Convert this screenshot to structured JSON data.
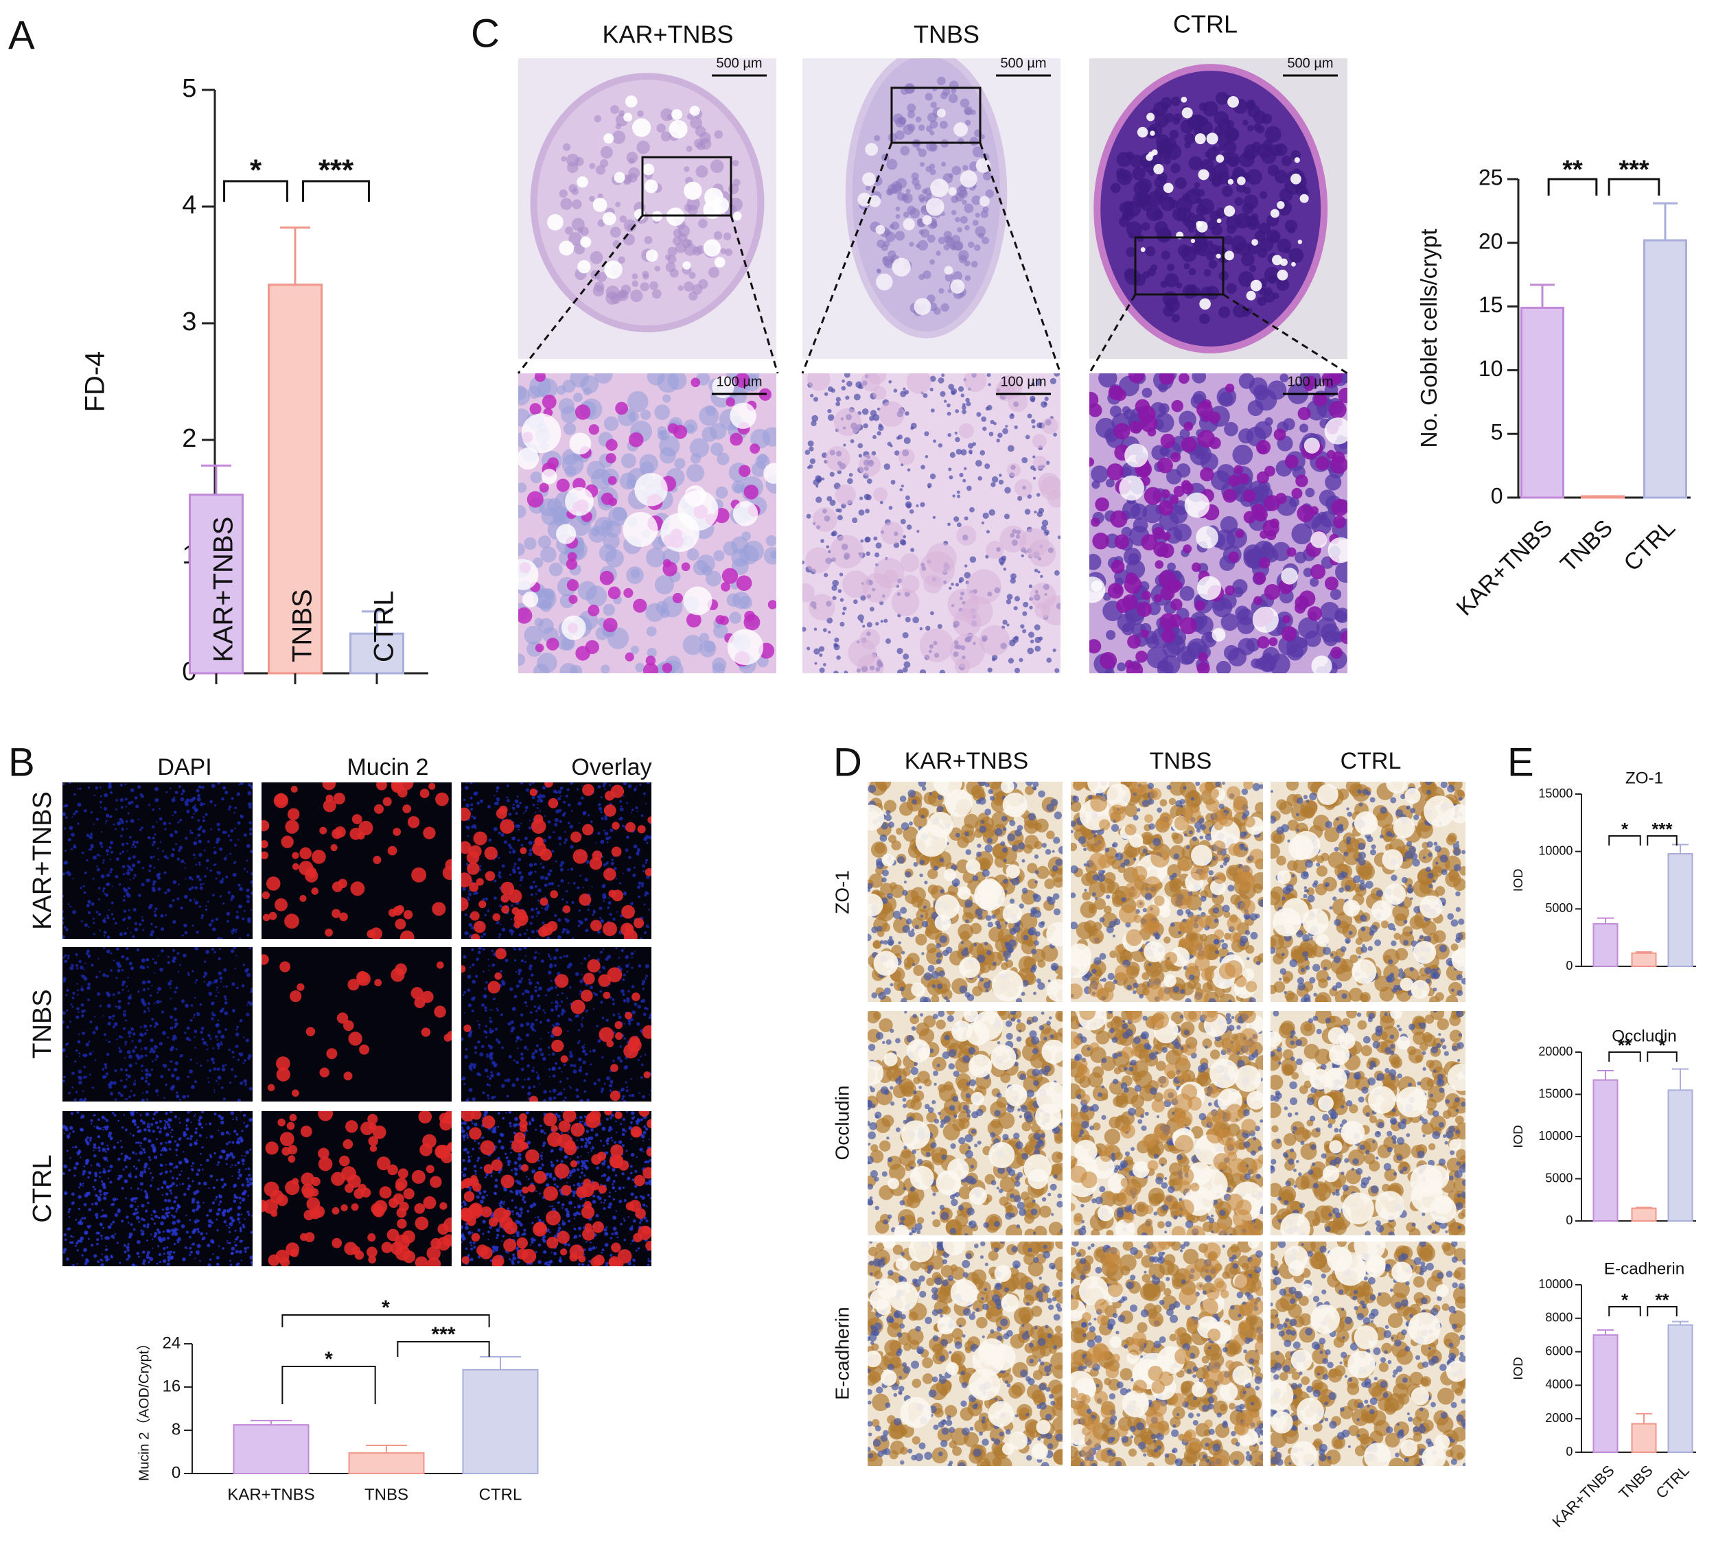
{
  "chart_data": [
    {
      "type": "bar",
      "y_label": "FD-4",
      "categories": [
        "KAR+TNBS",
        "TNBS",
        "CTRL"
      ],
      "values": [
        1.53,
        3.33,
        0.34
      ],
      "errors": [
        0.25,
        0.49,
        0.19
      ],
      "colors": [
        "#dcc2ee",
        "#f9cbc3",
        "#d3d6ec"
      ],
      "edge_colors": [
        "#c08ad8",
        "#f0968a",
        "#a9aedb"
      ],
      "ylim": [
        0,
        5
      ],
      "yticks": [
        0,
        1,
        2,
        3,
        4,
        5
      ],
      "annotations": [
        "*",
        "***"
      ]
    },
    {
      "type": "bar",
      "y_label": "No. Goblet cells/crypt",
      "categories": [
        "KAR+TNBS",
        "TNBS",
        "CTRL"
      ],
      "values": [
        14.9,
        0.1,
        20.2
      ],
      "errors": [
        1.8,
        0,
        2.9
      ],
      "colors": [
        "#dcc2ee",
        "#f9cbc3",
        "#d3d6ec"
      ],
      "edge_colors": [
        "#c08ad8",
        "#f0968a",
        "#a9aedb"
      ],
      "ylim": [
        0,
        25
      ],
      "yticks": [
        0,
        5,
        10,
        15,
        20,
        25
      ],
      "annotations": [
        "**",
        "***"
      ]
    },
    {
      "type": "bar",
      "y_label": "Mucin 2（AOD/Crypt）",
      "categories": [
        "KAR+TNBS",
        "TNBS",
        "CTRL"
      ],
      "values": [
        9,
        3.8,
        19.2
      ],
      "errors": [
        0.8,
        1.4,
        2.4
      ],
      "colors": [
        "#dcc2ee",
        "#f9cbc3",
        "#d3d6ec"
      ],
      "edge_colors": [
        "#c08ad8",
        "#f0968a",
        "#a9aedb"
      ],
      "ylim": [
        0,
        24
      ],
      "yticks": [
        0,
        8,
        16,
        24
      ],
      "annotations": [
        "*",
        "*",
        "***"
      ]
    },
    {
      "type": "bar",
      "title": "ZO-1",
      "y_label": "IOD",
      "values": [
        3700,
        1150,
        9800
      ],
      "errors": [
        500,
        100,
        800
      ],
      "colors": [
        "#dcc2ee",
        "#f9cbc3",
        "#d3d6ec"
      ],
      "edge_colors": [
        "#c08ad8",
        "#f0968a",
        "#a9aedb"
      ],
      "ylim": [
        0,
        15000
      ],
      "yticks": [
        0,
        5000,
        10000,
        15000
      ],
      "annotations": [
        "*",
        "***"
      ]
    },
    {
      "type": "bar",
      "title": "Occludin",
      "y_label": "IOD",
      "values": [
        16700,
        1500,
        15500
      ],
      "errors": [
        1100,
        100,
        2500
      ],
      "colors": [
        "#dcc2ee",
        "#f9cbc3",
        "#d3d6ec"
      ],
      "edge_colors": [
        "#c08ad8",
        "#f0968a",
        "#a9aedb"
      ],
      "ylim": [
        0,
        20000
      ],
      "yticks": [
        0,
        5000,
        10000,
        15000,
        20000
      ],
      "annotations": [
        "**",
        "*"
      ]
    },
    {
      "type": "bar",
      "title": "E-cadherin",
      "y_label": "IOD",
      "categories": [
        "KAR+TNBS",
        "TNBS",
        "CTRL"
      ],
      "values": [
        7000,
        1700,
        7600
      ],
      "errors": [
        300,
        600,
        200
      ],
      "colors": [
        "#dcc2ee",
        "#f9cbc3",
        "#d3d6ec"
      ],
      "edge_colors": [
        "#c08ad8",
        "#f0968a",
        "#a9aedb"
      ],
      "ylim": [
        0,
        10000
      ],
      "yticks": [
        0,
        2000,
        4000,
        6000,
        8000,
        10000
      ],
      "annotations": [
        "*",
        "**"
      ]
    }
  ],
  "panel_labels": [
    "A",
    "B",
    "C",
    "D",
    "E"
  ],
  "panel_B": {
    "columns": [
      "DAPI",
      "Mucin 2",
      "Overlay"
    ],
    "rows": [
      "KAR+TNBS",
      "TNBS",
      "CTRL"
    ]
  },
  "panel_C": {
    "columns": [
      "KAR+TNBS",
      "TNBS",
      "CTRL"
    ],
    "scale_bars": [
      "500 µm",
      "500 µm",
      "500 µm",
      "100 µm",
      "100 µm",
      "100 µm"
    ]
  },
  "panel_D": {
    "columns": [
      "KAR+TNBS",
      "TNBS",
      "CTRL"
    ],
    "rows": [
      "ZO-1",
      "Occludin",
      "E-cadherin"
    ]
  }
}
